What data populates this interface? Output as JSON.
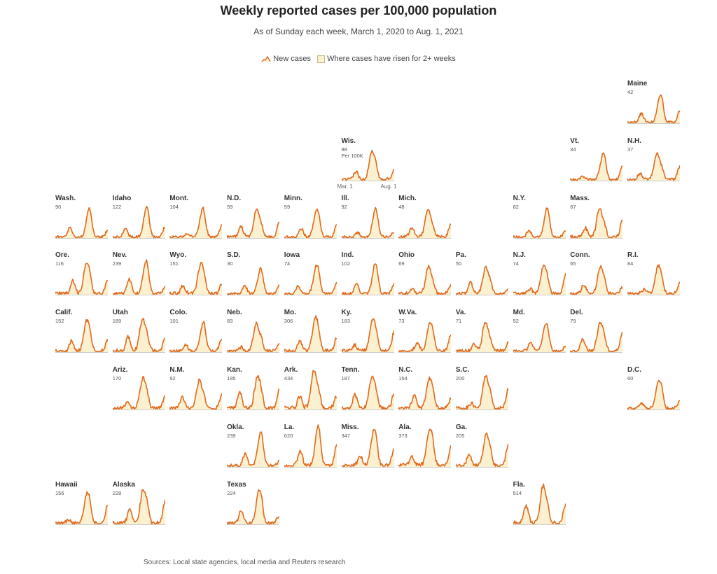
{
  "title": "Weekly reported cases per 100,000 population",
  "subtitle": "As of Sunday each week, March 1, 2020 to Aug. 1, 2021",
  "legend": {
    "new_cases": "New cases",
    "rising": "Where cases have risen for 2+ weeks"
  },
  "colors": {
    "line": "#e06a1e",
    "fill": "#fbf0cf",
    "baseline": "#cccccc"
  },
  "axis_note": {
    "per": "Per 100K",
    "start": "Mar. 1",
    "end": "Aug. 1"
  },
  "source": "Sources: Local state agencies, local media and Reuters research",
  "chart_data": {
    "type": "area",
    "layout": "tile grid map of U.S. states, one small multiple per state",
    "x_range": [
      "2020-03-01",
      "2021-08-01"
    ],
    "y_unit": "weekly reported cases per 100,000 population",
    "states": [
      {
        "name": "Maine",
        "peak": 42,
        "col": 10,
        "row": 0
      },
      {
        "name": "Wis.",
        "peak": 88,
        "col": 5,
        "row": 1
      },
      {
        "name": "Vt.",
        "peak": 34,
        "col": 9,
        "row": 1
      },
      {
        "name": "N.H.",
        "peak": 37,
        "col": 10,
        "row": 1
      },
      {
        "name": "Wash.",
        "peak": 90,
        "col": 0,
        "row": 2
      },
      {
        "name": "Idaho",
        "peak": 122,
        "col": 1,
        "row": 2
      },
      {
        "name": "Mont.",
        "peak": 104,
        "col": 2,
        "row": 2
      },
      {
        "name": "N.D.",
        "peak": 59,
        "col": 3,
        "row": 2
      },
      {
        "name": "Minn.",
        "peak": 59,
        "col": 4,
        "row": 2
      },
      {
        "name": "Ill.",
        "peak": 92,
        "col": 5,
        "row": 2
      },
      {
        "name": "Mich.",
        "peak": 48,
        "col": 6,
        "row": 2
      },
      {
        "name": "N.Y.",
        "peak": 82,
        "col": 8,
        "row": 2
      },
      {
        "name": "Mass.",
        "peak": 67,
        "col": 9,
        "row": 2
      },
      {
        "name": "Ore.",
        "peak": 116,
        "col": 0,
        "row": 3
      },
      {
        "name": "Nev.",
        "peak": 239,
        "col": 1,
        "row": 3
      },
      {
        "name": "Wyo.",
        "peak": 151,
        "col": 2,
        "row": 3
      },
      {
        "name": "S.D.",
        "peak": 30,
        "col": 3,
        "row": 3
      },
      {
        "name": "Iowa",
        "peak": 74,
        "col": 4,
        "row": 3
      },
      {
        "name": "Ind.",
        "peak": 102,
        "col": 5,
        "row": 3
      },
      {
        "name": "Ohio",
        "peak": 69,
        "col": 6,
        "row": 3
      },
      {
        "name": "Pa.",
        "peak": 50,
        "col": 7,
        "row": 3
      },
      {
        "name": "N.J.",
        "peak": 74,
        "col": 8,
        "row": 3
      },
      {
        "name": "Conn.",
        "peak": 65,
        "col": 9,
        "row": 3
      },
      {
        "name": "R.I.",
        "peak": 84,
        "col": 10,
        "row": 3
      },
      {
        "name": "Calif.",
        "peak": 152,
        "col": 0,
        "row": 4
      },
      {
        "name": "Utah",
        "peak": 189,
        "col": 1,
        "row": 4
      },
      {
        "name": "Colo.",
        "peak": 101,
        "col": 2,
        "row": 4
      },
      {
        "name": "Neb.",
        "peak": 83,
        "col": 3,
        "row": 4
      },
      {
        "name": "Mo.",
        "peak": 306,
        "col": 4,
        "row": 4
      },
      {
        "name": "Ky.",
        "peak": 183,
        "col": 5,
        "row": 4
      },
      {
        "name": "W.Va.",
        "peak": 73,
        "col": 6,
        "row": 4
      },
      {
        "name": "Va.",
        "peak": 71,
        "col": 7,
        "row": 4
      },
      {
        "name": "Md.",
        "peak": 52,
        "col": 8,
        "row": 4
      },
      {
        "name": "Del.",
        "peak": 79,
        "col": 9,
        "row": 4
      },
      {
        "name": "Ariz.",
        "peak": 170,
        "col": 1,
        "row": 5
      },
      {
        "name": "N.M.",
        "peak": 92,
        "col": 2,
        "row": 5
      },
      {
        "name": "Kan.",
        "peak": 195,
        "col": 3,
        "row": 5
      },
      {
        "name": "Ark.",
        "peak": 434,
        "col": 4,
        "row": 5
      },
      {
        "name": "Tenn.",
        "peak": 187,
        "col": 5,
        "row": 5
      },
      {
        "name": "N.C.",
        "peak": 154,
        "col": 6,
        "row": 5
      },
      {
        "name": "S.C.",
        "peak": 200,
        "col": 7,
        "row": 5
      },
      {
        "name": "D.C.",
        "peak": 60,
        "col": 10,
        "row": 5
      },
      {
        "name": "Okla.",
        "peak": 239,
        "col": 3,
        "row": 6
      },
      {
        "name": "La.",
        "peak": 620,
        "col": 4,
        "row": 6
      },
      {
        "name": "Miss.",
        "peak": 347,
        "col": 5,
        "row": 6
      },
      {
        "name": "Ala.",
        "peak": 373,
        "col": 6,
        "row": 6
      },
      {
        "name": "Ga.",
        "peak": 205,
        "col": 7,
        "row": 6
      },
      {
        "name": "Hawaii",
        "peak": 156,
        "col": 0,
        "row": 7
      },
      {
        "name": "Alaska",
        "peak": 228,
        "col": 1,
        "row": 7
      },
      {
        "name": "Texas",
        "peak": 224,
        "col": 3,
        "row": 7
      },
      {
        "name": "Fla.",
        "peak": 514,
        "col": 8,
        "row": 7
      }
    ]
  }
}
